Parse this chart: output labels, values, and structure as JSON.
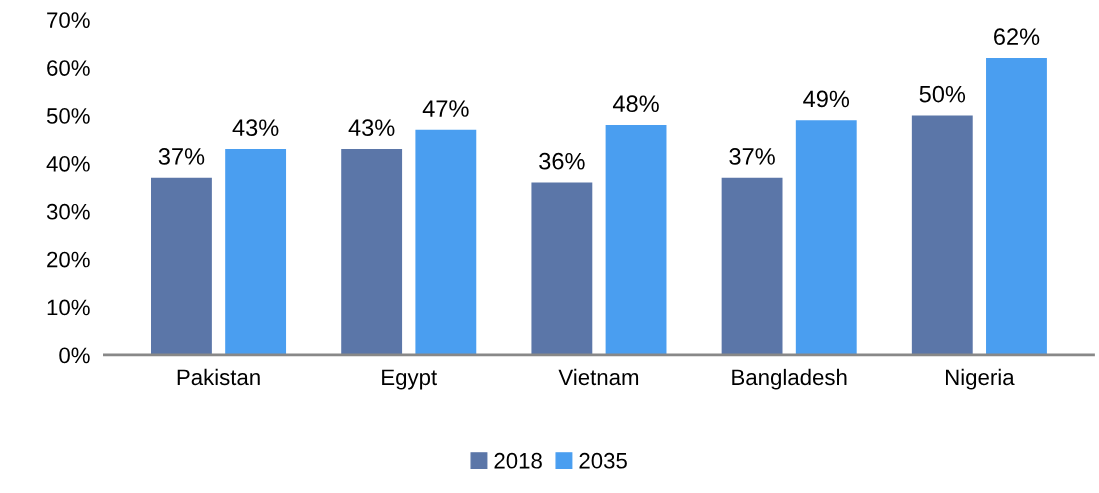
{
  "chart_data": {
    "type": "bar",
    "categories": [
      "Pakistan",
      "Egypt",
      "Vietnam",
      "Bangladesh",
      "Nigeria"
    ],
    "series": [
      {
        "name": "2018",
        "color": "#5b76a8",
        "values": [
          37,
          43,
          36,
          37,
          50
        ],
        "value_labels": [
          "37%",
          "43%",
          "36%",
          "37%",
          "50%"
        ]
      },
      {
        "name": "2035",
        "color": "#4a9ef0",
        "values": [
          43,
          47,
          48,
          49,
          62
        ],
        "value_labels": [
          "43%",
          "47%",
          "48%",
          "49%",
          "62%"
        ]
      }
    ],
    "ylim": [
      0,
      70
    ],
    "yticks": [
      {
        "value": 0,
        "label": "0%"
      },
      {
        "value": 10,
        "label": "10%"
      },
      {
        "value": 20,
        "label": "20%"
      },
      {
        "value": 30,
        "label": "30%"
      },
      {
        "value": 40,
        "label": "40%"
      },
      {
        "value": 50,
        "label": "50%"
      },
      {
        "value": 60,
        "label": "60%"
      },
      {
        "value": 70,
        "label": "70%"
      }
    ],
    "grid": false,
    "legend": "bottom"
  }
}
